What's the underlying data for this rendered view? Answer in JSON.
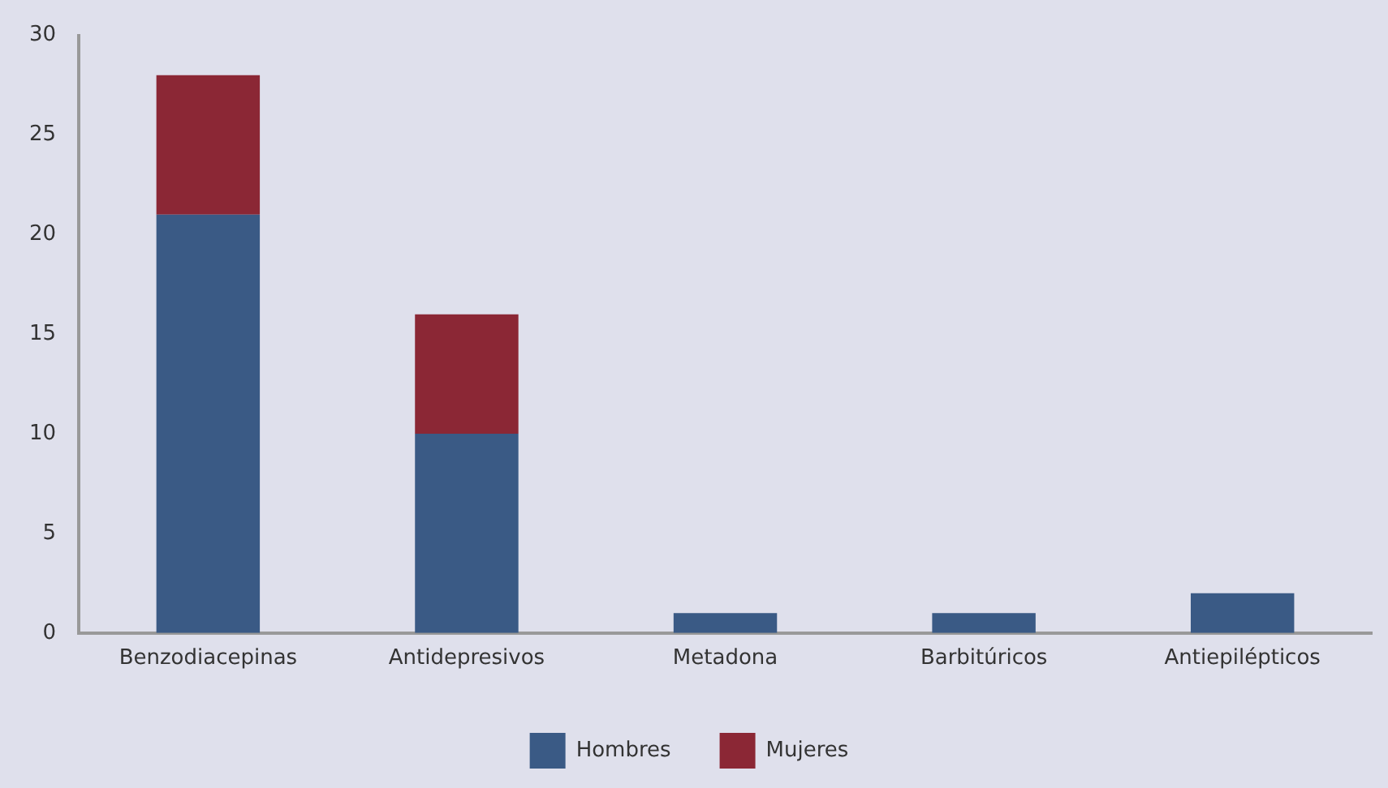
{
  "chart_data": {
    "type": "bar",
    "stacked": true,
    "categories": [
      "Benzodiacepinas",
      "Antidepresivos",
      "Metadona",
      "Barbitúricos",
      "Antiepilépticos"
    ],
    "series": [
      {
        "name": "Hombres",
        "color": "#3a5a85",
        "values": [
          21,
          10,
          1,
          1,
          2
        ]
      },
      {
        "name": "Mujeres",
        "color": "#8b2735",
        "values": [
          7,
          6,
          0,
          0,
          0
        ]
      }
    ],
    "ylim": [
      0,
      30
    ],
    "yticks": [
      0,
      5,
      10,
      15,
      20,
      25,
      30
    ],
    "grid": false,
    "legend": "bottom"
  }
}
